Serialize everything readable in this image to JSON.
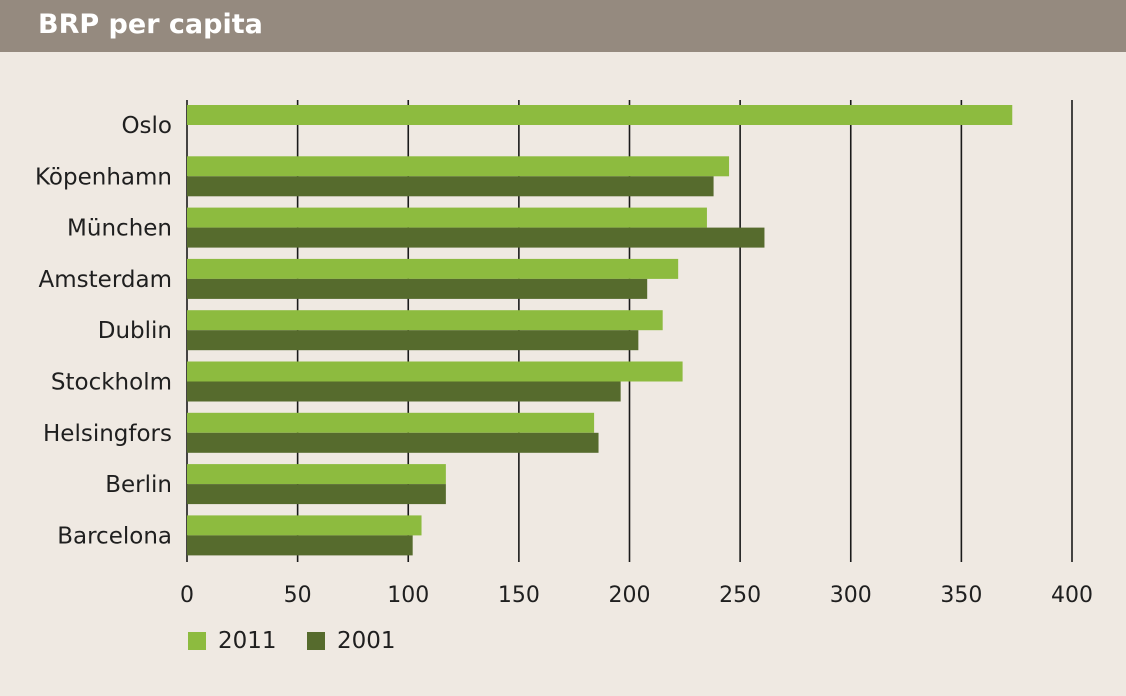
{
  "header": {
    "title": "BRP per capita"
  },
  "colors": {
    "2011": "#8dbb3f",
    "2001": "#566b2d",
    "grid": "#1a1a1a",
    "text": "#1f1f1f"
  },
  "legend": {
    "items": [
      {
        "label": "2011"
      },
      {
        "label": "2001"
      }
    ]
  },
  "chart_data": {
    "type": "bar",
    "orientation": "horizontal",
    "title": "BRP per capita",
    "categories": [
      "Oslo",
      "Köpenhamn",
      "München",
      "Amsterdam",
      "Dublin",
      "Stockholm",
      "Helsingfors",
      "Berlin",
      "Barcelona"
    ],
    "series": [
      {
        "name": "2011",
        "values": [
          373,
          245,
          235,
          222,
          215,
          224,
          184,
          117,
          106
        ]
      },
      {
        "name": "2001",
        "values": [
          null,
          238,
          261,
          208,
          204,
          196,
          186,
          117,
          102
        ]
      }
    ],
    "xlim": [
      0,
      400
    ],
    "xticks": [
      0,
      50,
      100,
      150,
      200,
      250,
      300,
      350,
      400
    ],
    "grid": true,
    "legend_position": "bottom-left"
  }
}
